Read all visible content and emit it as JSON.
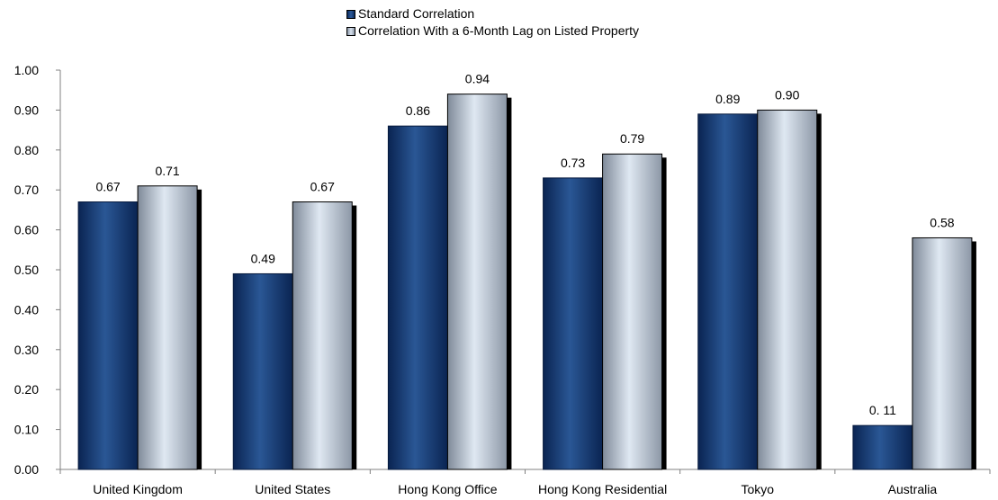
{
  "chart_data": {
    "type": "bar",
    "categories": [
      "United Kingdom",
      "United States",
      "Hong Kong Office",
      "Hong Kong Residential",
      "Tokyo",
      "Australia"
    ],
    "series": [
      {
        "name": "Standard Correlation",
        "values": [
          0.67,
          0.49,
          0.86,
          0.73,
          0.89,
          0.11
        ],
        "labels": [
          "0.67",
          "0.49",
          "0.86",
          "0.73",
          "0.89",
          "0. 11"
        ],
        "color": "#0f2f66"
      },
      {
        "name": "Correlation With a 6-Month Lag on Listed Property",
        "values": [
          0.71,
          0.67,
          0.94,
          0.79,
          0.9,
          0.58
        ],
        "labels": [
          "0.71",
          "0.67",
          "0.94",
          "0.79",
          "0.90",
          "0.58"
        ],
        "color": "#c9d4e3"
      }
    ],
    "ylim": [
      0,
      1.0
    ],
    "yticks": [
      "0.00",
      "0.10",
      "0.20",
      "0.30",
      "0.40",
      "0.50",
      "0.60",
      "0.70",
      "0.80",
      "0.90",
      "1.00"
    ],
    "grid": false,
    "legend_position": "top"
  }
}
